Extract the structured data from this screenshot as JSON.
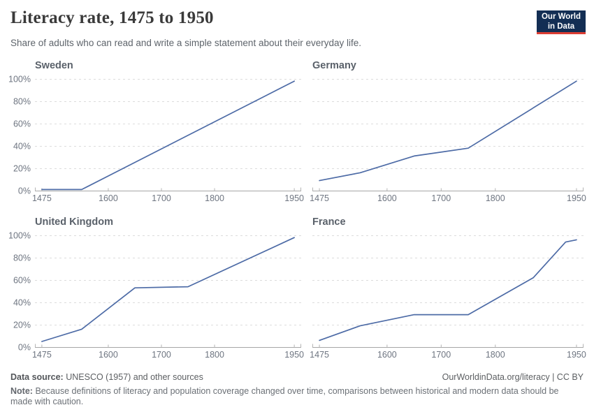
{
  "header": {
    "title": "Literacy rate, 1475 to 1950",
    "subtitle": "Share of adults who can read and write a simple statement about their everyday life."
  },
  "logo": {
    "line1": "Our World",
    "line2": "in Data"
  },
  "colors": {
    "line": "#4d6ba6",
    "grid": "#dcdcdc",
    "axis": "#a6a6a6",
    "tick": "#b4b4b4",
    "tick_label": "#6e7581",
    "logo_bg": "#132e54",
    "logo_accent": "#dc3e34"
  },
  "chart_data": {
    "type": "line",
    "title": "Literacy rate, 1475 to 1950",
    "xlabel": "",
    "ylabel": "",
    "xlim": [
      1462,
      1963
    ],
    "ylim": [
      0,
      100
    ],
    "grid": "horizontal-dashed",
    "legend": "none (faceted small multiples, one series per panel)",
    "x_ticks": [
      1475,
      1600,
      1700,
      1800,
      1950
    ],
    "x_tick_labels": [
      "1475",
      "1600",
      "1700",
      "1800",
      "1950"
    ],
    "y_ticks": [
      0,
      20,
      40,
      60,
      80,
      100
    ],
    "y_tick_labels": [
      "0%",
      "20%",
      "40%",
      "60%",
      "80%",
      "100%"
    ],
    "facets": [
      {
        "name": "Sweden",
        "x": [
          1475,
          1550,
          1950
        ],
        "y": [
          1,
          1,
          98
        ]
      },
      {
        "name": "Germany",
        "x": [
          1475,
          1550,
          1650,
          1750,
          1950
        ],
        "y": [
          9,
          16,
          31,
          38,
          98
        ]
      },
      {
        "name": "United Kingdom",
        "x": [
          1475,
          1550,
          1650,
          1750,
          1950
        ],
        "y": [
          5,
          16,
          53,
          54,
          98
        ]
      },
      {
        "name": "France",
        "x": [
          1475,
          1550,
          1650,
          1750,
          1870,
          1930,
          1950
        ],
        "y": [
          6,
          19,
          29,
          29,
          62,
          94,
          96
        ]
      }
    ]
  },
  "footer": {
    "source_label": "Data source:",
    "source_text": "UNESCO (1957) and other sources",
    "link_text": "OurWorldinData.org/literacy | CC BY",
    "note_label": "Note:",
    "note_text": "Because definitions of literacy and population coverage changed over time, comparisons between historical and modern data should be made with caution."
  }
}
